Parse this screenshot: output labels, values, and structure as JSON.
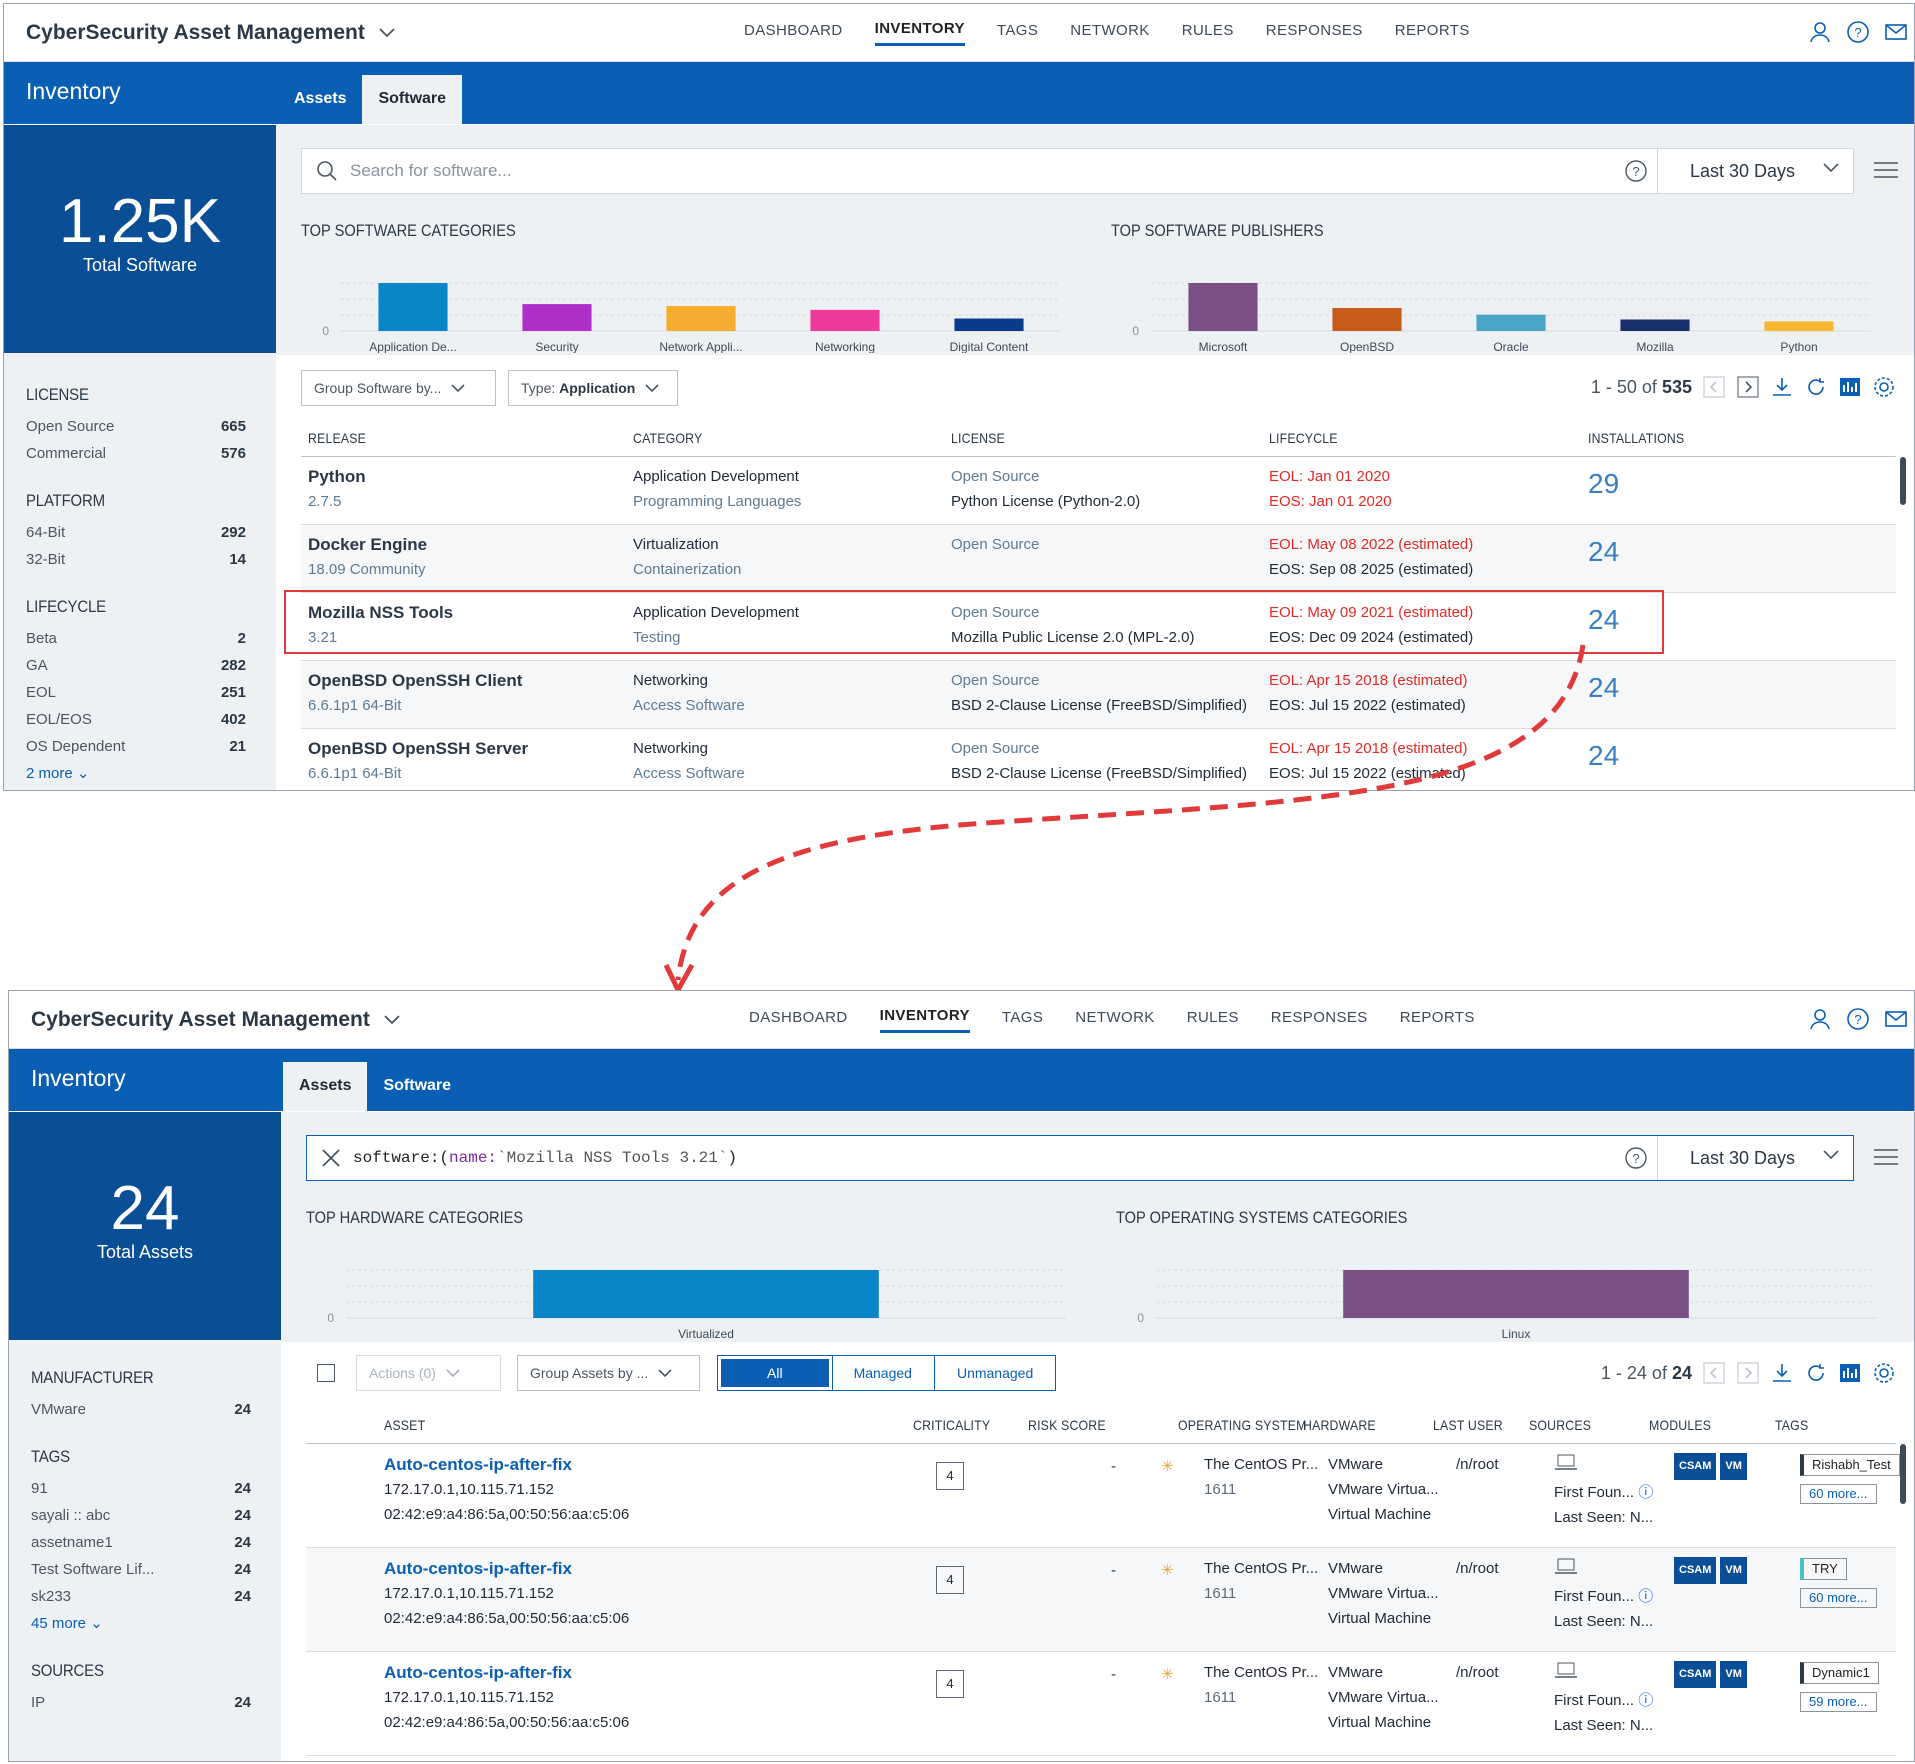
{
  "colors": {
    "brand": "#0a5fb4",
    "kpi": "#0a4e96",
    "eol": "#e02b27",
    "link": "#0a5fb4",
    "annotation": "#e03a3a"
  },
  "common": {
    "app_title": "CyberSecurity Asset Management",
    "inventory": "Inventory",
    "date_range": "Last 30 Days",
    "nav": [
      "DASHBOARD",
      "INVENTORY",
      "TAGS",
      "NETWORK",
      "RULES",
      "RESPONSES",
      "REPORTS"
    ],
    "tabs": [
      "Assets",
      "Software"
    ]
  },
  "software_view": {
    "kpi_value": "1.25K",
    "kpi_label": "Total Software",
    "search_placeholder": "Search for software...",
    "filters": [
      {
        "title": "LICENSE",
        "items": [
          {
            "label": "Open Source",
            "count": "665"
          },
          {
            "label": "Commercial",
            "count": "576"
          }
        ]
      },
      {
        "title": "PLATFORM",
        "items": [
          {
            "label": "64-Bit",
            "count": "292"
          },
          {
            "label": "32-Bit",
            "count": "14"
          }
        ]
      },
      {
        "title": "LIFECYCLE",
        "items": [
          {
            "label": "Beta",
            "count": "2"
          },
          {
            "label": "GA",
            "count": "282"
          },
          {
            "label": "EOL",
            "count": "251"
          },
          {
            "label": "EOL/EOS",
            "count": "402"
          },
          {
            "label": "OS Dependent",
            "count": "21"
          }
        ]
      }
    ],
    "filters_more": "2 more",
    "chart_titles": [
      "TOP SOFTWARE CATEGORIES",
      "TOP SOFTWARE PUBLISHERS"
    ],
    "group_by": "Group Software by...",
    "type_prefix": "Type:",
    "type_value": "Application",
    "pager_range": "1 - 50 of",
    "pager_total": "535",
    "columns": [
      "RELEASE",
      "CATEGORY",
      "LICENSE",
      "LIFECYCLE",
      "INSTALLATIONS"
    ],
    "rows": [
      {
        "name": "Python",
        "version": "2.7.5",
        "cat1": "Application Development",
        "cat2": "Programming Languages",
        "lic1": "Open Source",
        "lic2": "Python License (Python-2.0)",
        "eol": "EOL: Jan 01 2020",
        "eos": "EOS: Jan 01 2020",
        "eos_red": true,
        "inst": "29"
      },
      {
        "name": "Docker Engine",
        "version": "18.09 Community",
        "cat1": "Virtualization",
        "cat2": "Containerization",
        "lic1": "Open Source",
        "lic2": "",
        "eol": "EOL: May 08 2022 (estimated)",
        "eos": "EOS: Sep 08 2025 (estimated)",
        "eos_red": false,
        "inst": "24"
      },
      {
        "name": "Mozilla NSS Tools",
        "version": "3.21",
        "cat1": "Application Development",
        "cat2": "Testing",
        "lic1": "Open Source",
        "lic2": "Mozilla Public License 2.0 (MPL-2.0)",
        "eol": "EOL: May 09 2021 (estimated)",
        "eos": "EOS: Dec 09 2024 (estimated)",
        "eos_red": false,
        "inst": "24"
      },
      {
        "name": "OpenBSD OpenSSH Client",
        "version": "6.6.1p1 64-Bit",
        "cat1": "Networking",
        "cat2": "Access Software",
        "lic1": "Open Source",
        "lic2": "BSD 2-Clause License (FreeBSD/Simplified)",
        "eol": "EOL: Apr 15 2018 (estimated)",
        "eos": "EOS: Jul 15 2022 (estimated)",
        "eos_red": false,
        "inst": "24"
      },
      {
        "name": "OpenBSD OpenSSH Server",
        "version": "6.6.1p1 64-Bit",
        "cat1": "Networking",
        "cat2": "Access Software",
        "lic1": "Open Source",
        "lic2": "BSD 2-Clause License (FreeBSD/Simplified)",
        "eol": "EOL: Apr 15 2018 (estimated)",
        "eos": "EOS: Jul 15 2022 (estimated)",
        "eos_red": false,
        "inst": "24"
      }
    ]
  },
  "asset_view": {
    "kpi_value": "24",
    "kpi_label": "Total Assets",
    "query_key": "software:(",
    "query_name": "name:",
    "query_val": "`Mozilla NSS Tools 3.21`",
    "query_end": ")",
    "filters": [
      {
        "title": "MANUFACTURER",
        "items": [
          {
            "label": "VMware",
            "count": "24"
          }
        ]
      },
      {
        "title": "TAGS",
        "items": [
          {
            "label": "91",
            "count": "24"
          },
          {
            "label": "sayali :: abc",
            "count": "24"
          },
          {
            "label": "assetname1",
            "count": "24"
          },
          {
            "label": "Test Software Lif...",
            "count": "24"
          },
          {
            "label": "sk233",
            "count": "24"
          }
        ],
        "more": "45 more"
      },
      {
        "title": "SOURCES",
        "items": [
          {
            "label": "IP",
            "count": "24"
          }
        ]
      }
    ],
    "chart_titles": [
      "TOP HARDWARE CATEGORIES",
      "TOP OPERATING SYSTEMS CATEGORIES"
    ],
    "actions": "Actions (0)",
    "group_by": "Group Assets by ...",
    "seg": [
      "All",
      "Managed",
      "Unmanaged"
    ],
    "pager_range": "1 - 24 of",
    "pager_total": "24",
    "columns": [
      "ASSET",
      "CRITICALITY",
      "RISK SCORE",
      "OPERATING SYSTEM",
      "HARDWARE",
      "LAST USER",
      "SOURCES",
      "MODULES",
      "TAGS"
    ],
    "rows": [
      {
        "name": "Auto-centos-ip-after-fix",
        "ips": "172.17.0.1,10.115.71.152",
        "macs": "02:42:e9:a4:86:5a,00:50:56:aa:c5:06",
        "crit": "4",
        "risk": "-",
        "os": "The CentOS Pr...",
        "osv": "1611",
        "hw1": "VMware",
        "hw2": "VMware Virtua...",
        "hw3": "Virtual Machine",
        "user": "/n/root",
        "src1": "First Foun...",
        "src2": "Last Seen: N...",
        "mods": [
          "CSAM",
          "VM"
        ],
        "tag": "Rishabh_Test",
        "tagmore": "60 more..."
      },
      {
        "name": "Auto-centos-ip-after-fix",
        "ips": "172.17.0.1,10.115.71.152",
        "macs": "02:42:e9:a4:86:5a,00:50:56:aa:c5:06",
        "crit": "4",
        "risk": "-",
        "os": "The CentOS Pr...",
        "osv": "1611",
        "hw1": "VMware",
        "hw2": "VMware Virtua...",
        "hw3": "Virtual Machine",
        "user": "/n/root",
        "src1": "First Foun...",
        "src2": "Last Seen: N...",
        "mods": [
          "CSAM",
          "VM"
        ],
        "tag": "TRY",
        "tagmore": "60 more..."
      },
      {
        "name": "Auto-centos-ip-after-fix",
        "ips": "172.17.0.1,10.115.71.152",
        "macs": "02:42:e9:a4:86:5a,00:50:56:aa:c5:06",
        "crit": "4",
        "risk": "-",
        "os": "The CentOS Pr...",
        "osv": "1611",
        "hw1": "VMware",
        "hw2": "VMware Virtua...",
        "hw3": "Virtual Machine",
        "user": "/n/root",
        "src1": "First Foun...",
        "src2": "Last Seen: N...",
        "mods": [
          "CSAM",
          "VM"
        ],
        "tag": "Dynamic1",
        "tagmore": "59 more..."
      }
    ]
  },
  "chart_data": [
    {
      "type": "bar",
      "title": "TOP SOFTWARE CATEGORIES",
      "categories": [
        "Application De...",
        "Security",
        "Network Appli...",
        "Networking",
        "Digital Content"
      ],
      "values": [
        100,
        56,
        52,
        44,
        26
      ],
      "colors": [
        "#0a86c8",
        "#b02fc8",
        "#f5ad2f",
        "#f03a9a",
        "#0a3a8a"
      ],
      "ylabel_zero": "0"
    },
    {
      "type": "bar",
      "title": "TOP SOFTWARE PUBLISHERS",
      "categories": [
        "Microsoft",
        "OpenBSD",
        "Oracle",
        "Mozilla",
        "Python"
      ],
      "values": [
        100,
        48,
        34,
        24,
        20
      ],
      "colors": [
        "#7a4f84",
        "#c75c1a",
        "#4aa5c8",
        "#1a2f6e",
        "#f5b82f"
      ],
      "ylabel_zero": "0"
    },
    {
      "type": "bar",
      "title": "TOP HARDWARE CATEGORIES",
      "categories": [
        "Virtualized"
      ],
      "values": [
        24
      ],
      "colors": [
        "#0a86c8"
      ],
      "ylabel_zero": "0"
    },
    {
      "type": "bar",
      "title": "TOP OPERATING SYSTEMS CATEGORIES",
      "categories": [
        "Linux"
      ],
      "values": [
        24
      ],
      "colors": [
        "#7a4f84"
      ],
      "ylabel_zero": "0"
    }
  ]
}
